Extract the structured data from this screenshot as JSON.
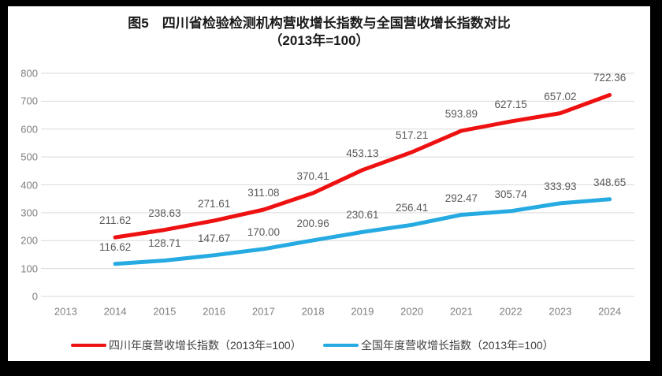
{
  "frame": {
    "border_color": "#000000",
    "surface_color": "#ffffff"
  },
  "title": {
    "line1": "图5　四川省检验检测机构营收增长指数与全国营收增长指数对比",
    "line2": "（2013年=100）"
  },
  "chart_data": {
    "type": "line",
    "title": "图5 四川省检验检测机构营收增长指数与全国营收增长指数对比（2013年=100）",
    "categories": [
      "2013",
      "2014",
      "2015",
      "2016",
      "2017",
      "2018",
      "2019",
      "2020",
      "2021",
      "2022",
      "2023",
      "2024"
    ],
    "series": [
      {
        "name": "四川年度营收增长指数（2013年=100）",
        "color": "#ee1111",
        "years": [
          "2014",
          "2015",
          "2016",
          "2017",
          "2018",
          "2019",
          "2020",
          "2021",
          "2022",
          "2023",
          "2024"
        ],
        "values": [
          211.62,
          238.63,
          271.61,
          311.08,
          370.41,
          453.13,
          517.21,
          593.89,
          627.15,
          657.02,
          722.36
        ]
      },
      {
        "name": "全国年度营收增长指数（2013年=100）",
        "color": "#25aae1",
        "years": [
          "2014",
          "2015",
          "2016",
          "2017",
          "2018",
          "2019",
          "2020",
          "2021",
          "2022",
          "2023",
          "2024"
        ],
        "values": [
          116.62,
          128.71,
          147.67,
          170.0,
          200.96,
          230.61,
          256.41,
          292.47,
          305.74,
          333.93,
          348.65
        ]
      }
    ],
    "xlabel": "",
    "ylabel": "",
    "ylim": [
      0,
      800
    ],
    "y_ticks": [
      0,
      100,
      200,
      300,
      400,
      500,
      600,
      700,
      800
    ],
    "grid": true,
    "gridline_color": "#d9d9d9",
    "tick_label_color": "#7f7f7f",
    "data_label_color": "#595959",
    "data_labels": true,
    "label_format": "0.00",
    "legend_position": "bottom"
  }
}
